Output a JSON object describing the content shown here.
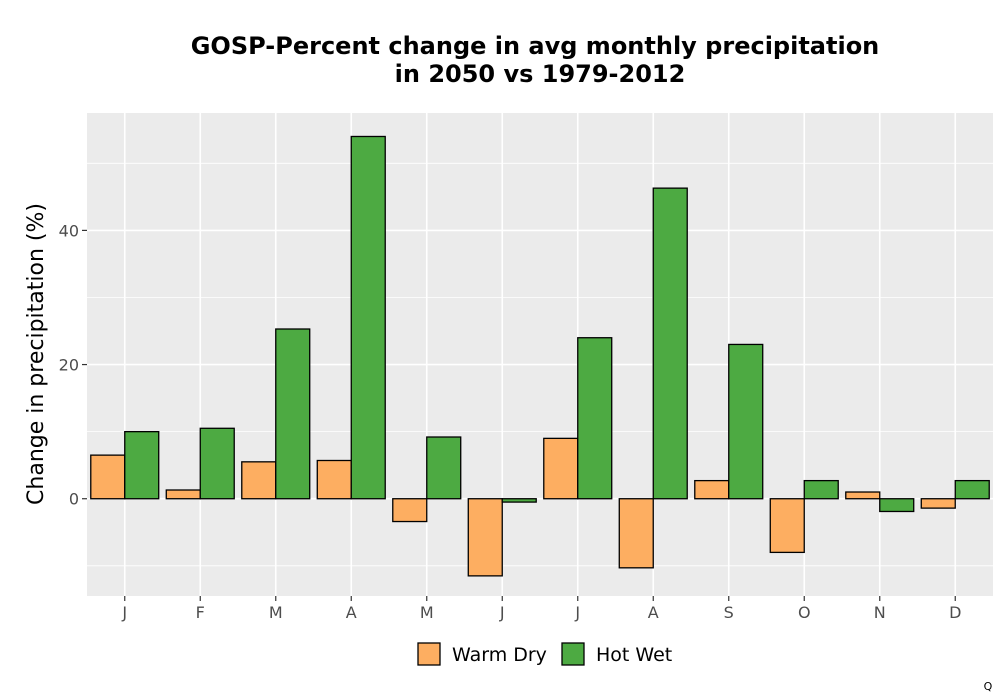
{
  "chart_data": {
    "type": "bar",
    "title": [
      "GOSP-Percent change in avg monthly precipitation",
      "in 2050 vs 1979-2012"
    ],
    "xlabel": "",
    "ylabel": "Change in precipitation (%)",
    "categories": [
      "J",
      "F",
      "M",
      "A",
      "M",
      "J",
      "J",
      "A",
      "S",
      "O",
      "N",
      "D"
    ],
    "series": [
      {
        "name": "Warm Dry",
        "color": "#fdae61",
        "values": [
          6.5,
          1.3,
          5.5,
          5.7,
          -3.4,
          -11.5,
          9.0,
          -10.3,
          2.7,
          -8.0,
          1.0,
          -1.4
        ]
      },
      {
        "name": "Hot Wet",
        "color": "#4daa42",
        "values": [
          10.0,
          10.5,
          25.3,
          54.0,
          9.2,
          -0.5,
          24.0,
          46.3,
          23.0,
          2.7,
          -1.9,
          2.7
        ]
      }
    ],
    "ylim": [
      -14.5,
      57.5
    ],
    "yticks": [
      0,
      20,
      40
    ],
    "grid": true,
    "legend_position": "bottom"
  },
  "corner_text": "Q"
}
